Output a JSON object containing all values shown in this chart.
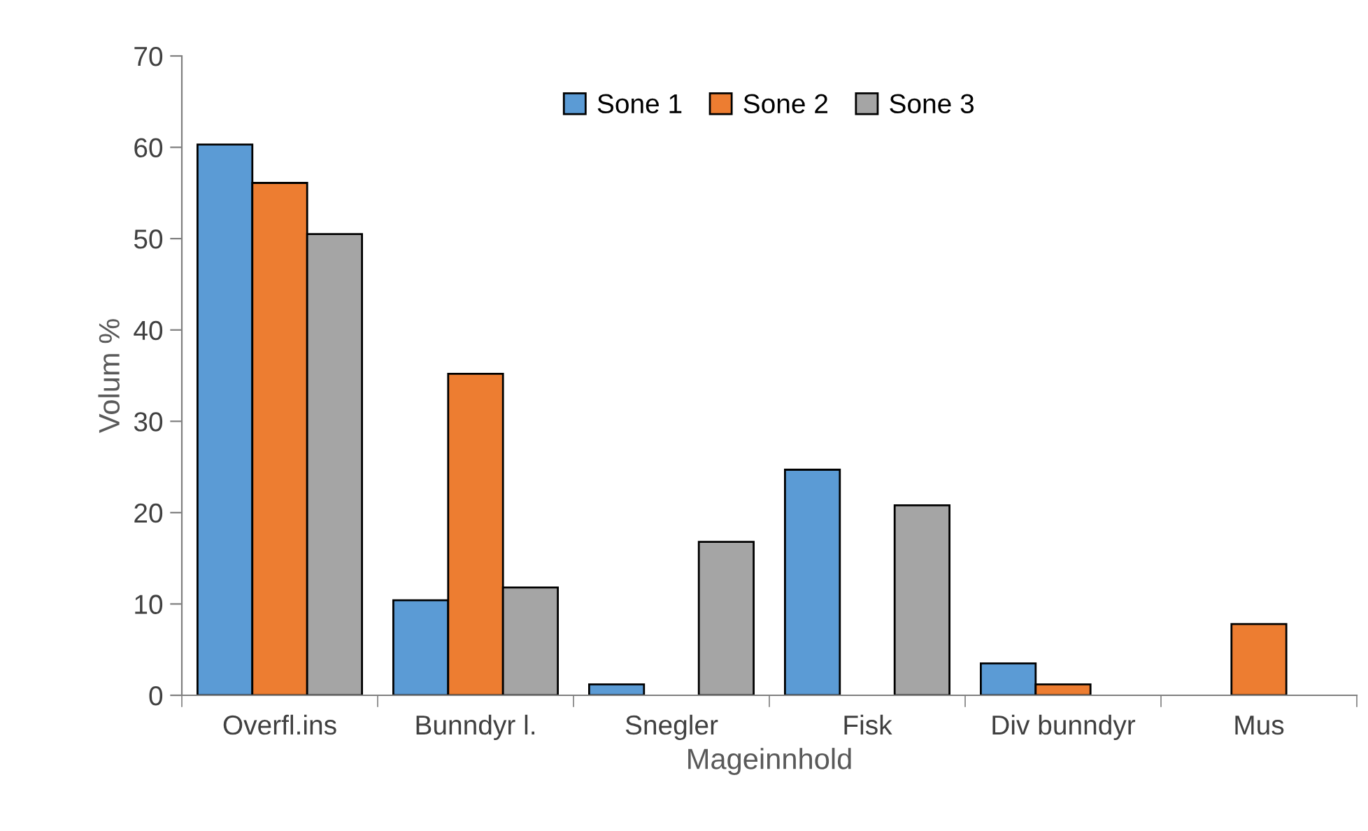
{
  "chart_data": {
    "type": "bar",
    "xlabel": "Mageinnhold",
    "ylabel": "Volum %",
    "categories": [
      "Overfl.ins",
      "Bunndyr l.",
      "Snegler",
      "Fisk",
      "Div bunndyr",
      "Mus"
    ],
    "series": [
      {
        "name": "Sone 1",
        "color": "#5b9bd5",
        "values": [
          60.3,
          10.4,
          1.2,
          24.7,
          3.5,
          0
        ]
      },
      {
        "name": "Sone 2",
        "color": "#ed7d31",
        "values": [
          56.1,
          35.2,
          0,
          0,
          1.2,
          7.8
        ]
      },
      {
        "name": "Sone 3",
        "color": "#a5a5a5",
        "values": [
          50.5,
          11.8,
          16.8,
          20.8,
          0,
          0
        ]
      }
    ],
    "ylim": [
      0,
      70
    ],
    "yticks": [
      0,
      10,
      20,
      30,
      40,
      50,
      60,
      70
    ],
    "grid": false,
    "legend": "top"
  }
}
